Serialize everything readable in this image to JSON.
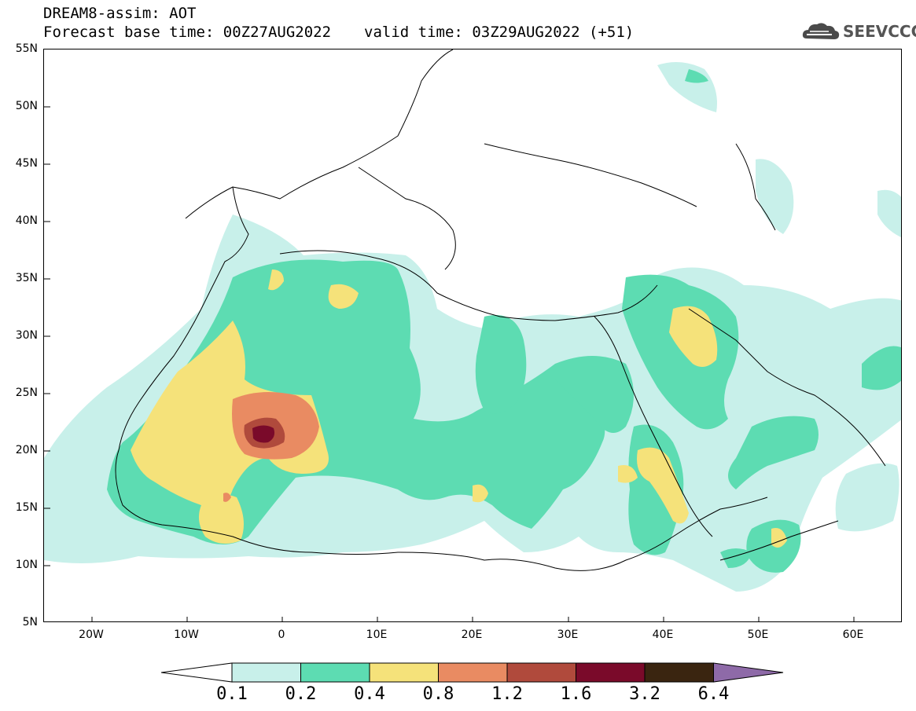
{
  "header": {
    "title_line1": "DREAM8-assim: AOT",
    "title_line2_base": "Forecast base time: 00Z27AUG2022",
    "title_line2_valid": "valid time: 03Z29AUG2022 (+51)",
    "logo_text": "SEEVCCC"
  },
  "map": {
    "lat_labels": [
      "55N",
      "50N",
      "45N",
      "40N",
      "35N",
      "30N",
      "25N",
      "20N",
      "15N",
      "10N",
      "5N"
    ],
    "lon_labels": [
      "20W",
      "10W",
      "0",
      "10E",
      "20E",
      "30E",
      "40E",
      "50E",
      "60E"
    ],
    "extent": {
      "lon_min": -25,
      "lon_max": 65,
      "lat_min": 5,
      "lat_max": 55
    }
  },
  "colorbar": {
    "labels": [
      "0.1",
      "0.2",
      "0.4",
      "0.8",
      "1.2",
      "1.6",
      "3.2",
      "6.4"
    ],
    "colors": [
      "#ffffff",
      "#c8f0ea",
      "#5ddcb2",
      "#f5e27a",
      "#e98b62",
      "#b04a3c",
      "#7a0a2a",
      "#3a2510",
      "#8e6aa8"
    ]
  },
  "legend_colors": {
    "level_0_1": "#c8f0ea",
    "level_0_2": "#5ddcb2",
    "level_0_4": "#f5e27a",
    "level_0_8": "#e98b62",
    "level_1_2": "#b04a3c",
    "level_1_6": "#7a0a2a"
  }
}
